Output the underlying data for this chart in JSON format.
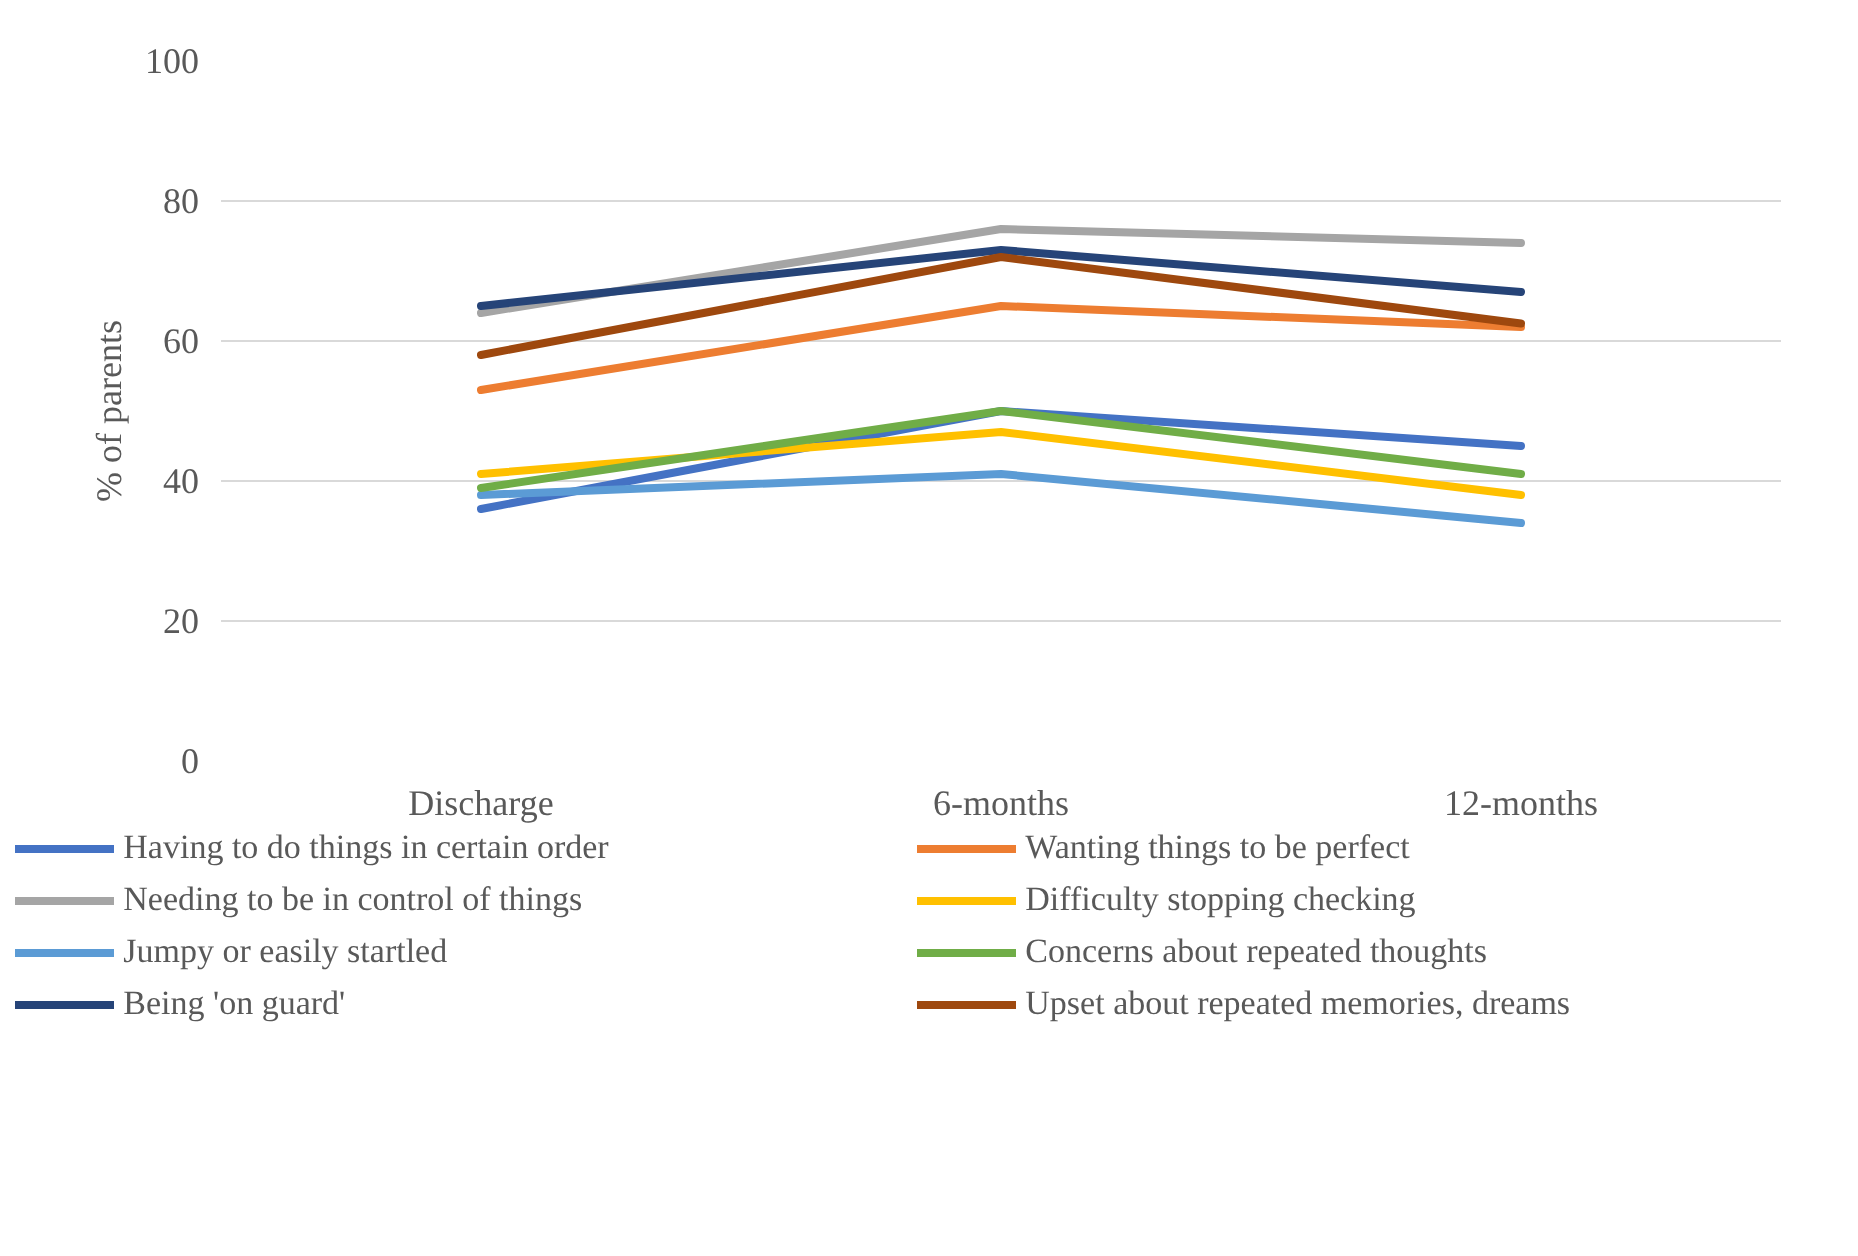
{
  "chart_data": {
    "type": "line",
    "ylabel": "% of parents",
    "categories": [
      "Discharge",
      "6-months",
      "12-months"
    ],
    "ylim": [
      0,
      100
    ],
    "yticks": [
      0,
      20,
      40,
      60,
      80,
      100
    ],
    "grid": "y",
    "legend": "bottom",
    "marker": "none",
    "line_style": "solid",
    "series": [
      {
        "name": "Having to do things in certain order",
        "color": "#4472c4",
        "values": [
          36,
          50,
          45
        ]
      },
      {
        "name": "Wanting things to be perfect",
        "color": "#ed7d31",
        "values": [
          53,
          65,
          62
        ]
      },
      {
        "name": "Needing to be in control of things",
        "color": "#a5a5a5",
        "values": [
          64,
          76,
          74
        ]
      },
      {
        "name": "Difficulty stopping checking",
        "color": "#ffc000",
        "values": [
          41,
          47,
          38
        ]
      },
      {
        "name": "Jumpy or easily startled",
        "color": "#5b9bd5",
        "values": [
          38,
          41,
          34
        ]
      },
      {
        "name": "Concerns about repeated thoughts",
        "color": "#70ad47",
        "values": [
          39,
          50,
          41
        ]
      },
      {
        "name": "Being 'on guard'",
        "color": "#264478",
        "values": [
          65,
          73,
          67
        ]
      },
      {
        "name": "Upset about repeated memories, dreams",
        "color": "#9e480e",
        "values": [
          58,
          72,
          62.5
        ]
      }
    ]
  }
}
